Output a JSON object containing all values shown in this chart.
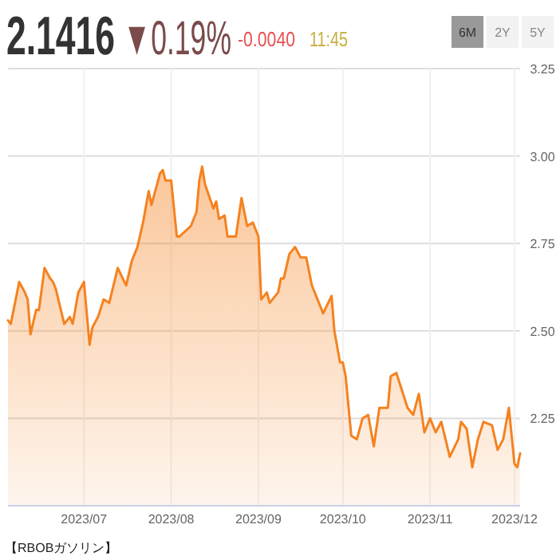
{
  "chart_data": {
    "type": "area",
    "annotations": [
      "2.1416",
      "▼0.19%",
      "-0.0040",
      "11:45",
      "6M",
      "2Y",
      "5Y",
      "【RBOBガソリン】"
    ],
    "x": [
      "2023-06-04",
      "2023-06-05",
      "2023-06-08",
      "2023-06-10",
      "2023-06-11",
      "2023-06-12",
      "2023-06-14",
      "2023-06-15",
      "2023-06-17",
      "2023-06-19",
      "2023-06-20",
      "2023-06-21",
      "2023-06-24",
      "2023-06-26",
      "2023-06-27",
      "2023-06-29",
      "2023-07-01",
      "2023-07-03",
      "2023-07-04",
      "2023-07-06",
      "2023-07-08",
      "2023-07-10",
      "2023-07-13",
      "2023-07-16",
      "2023-07-18",
      "2023-07-20",
      "2023-07-22",
      "2023-07-24",
      "2023-07-25",
      "2023-07-28",
      "2023-07-29",
      "2023-07-30",
      "2023-08-01",
      "2023-08-03",
      "2023-08-04",
      "2023-08-08",
      "2023-08-10",
      "2023-08-11",
      "2023-08-12",
      "2023-08-13",
      "2023-08-16",
      "2023-08-17",
      "2023-08-18",
      "2023-08-20",
      "2023-08-21",
      "2023-08-24",
      "2023-08-26",
      "2023-08-28",
      "2023-08-30",
      "2023-09-01",
      "2023-09-02",
      "2023-09-04",
      "2023-09-05",
      "2023-09-06",
      "2023-09-08",
      "2023-09-09",
      "2023-09-10",
      "2023-09-12",
      "2023-09-14",
      "2023-09-16",
      "2023-09-18",
      "2023-09-20",
      "2023-09-23",
      "2023-09-24",
      "2023-09-27",
      "2023-09-28",
      "2023-09-30",
      "2023-10-01",
      "2023-10-02",
      "2023-10-04",
      "2023-10-06",
      "2023-10-08",
      "2023-10-10",
      "2023-10-12",
      "2023-10-14",
      "2023-10-17",
      "2023-10-18",
      "2023-10-20",
      "2023-10-22",
      "2023-10-24",
      "2023-10-26",
      "2023-10-28",
      "2023-10-30",
      "2023-11-01",
      "2023-11-03",
      "2023-11-05",
      "2023-11-08",
      "2023-11-11",
      "2023-11-12",
      "2023-11-14",
      "2023-11-16",
      "2023-11-18",
      "2023-11-20",
      "2023-11-23",
      "2023-11-25",
      "2023-11-27",
      "2023-11-29",
      "2023-12-01",
      "2023-12-02",
      "2023-12-03"
    ],
    "series": [
      {
        "color": "#f5821f",
        "values": [
          2.53,
          2.52,
          2.64,
          2.61,
          2.59,
          2.49,
          2.56,
          2.56,
          2.68,
          2.65,
          2.64,
          2.62,
          2.52,
          2.54,
          2.52,
          2.61,
          2.64,
          2.46,
          2.51,
          2.54,
          2.59,
          2.58,
          2.68,
          2.63,
          2.7,
          2.74,
          2.81,
          2.9,
          2.86,
          2.95,
          2.96,
          2.93,
          2.93,
          2.77,
          2.77,
          2.8,
          2.84,
          2.93,
          2.97,
          2.92,
          2.85,
          2.87,
          2.82,
          2.83,
          2.77,
          2.77,
          2.88,
          2.8,
          2.81,
          2.77,
          2.59,
          2.61,
          2.58,
          2.59,
          2.61,
          2.65,
          2.65,
          2.72,
          2.74,
          2.71,
          2.71,
          2.63,
          2.57,
          2.55,
          2.6,
          2.5,
          2.41,
          2.41,
          2.37,
          2.2,
          2.19,
          2.25,
          2.26,
          2.17,
          2.28,
          2.28,
          2.37,
          2.38,
          2.33,
          2.28,
          2.26,
          2.32,
          2.21,
          2.25,
          2.21,
          2.24,
          2.14,
          2.19,
          2.24,
          2.22,
          2.11,
          2.19,
          2.24,
          2.23,
          2.16,
          2.19,
          2.28,
          2.12,
          2.11,
          2.15
        ]
      }
    ],
    "xlim": [
      "2023-06-04",
      "2023-12-03"
    ],
    "xticks": [
      {
        "value": "2023-07-01",
        "label": "2023/07"
      },
      {
        "value": "2023-08-01",
        "label": "2023/08"
      },
      {
        "value": "2023-09-01",
        "label": "2023/09"
      },
      {
        "value": "2023-10-01",
        "label": "2023/10"
      },
      {
        "value": "2023-11-01",
        "label": "2023/11"
      },
      {
        "value": "2023-12-01",
        "label": "2023/12"
      }
    ],
    "ylim": [
      2.0,
      3.25
    ],
    "yticks": [
      {
        "value": 2.25,
        "label": "2.25"
      },
      {
        "value": 2.5,
        "label": "2.50"
      },
      {
        "value": 2.75,
        "label": "2.75"
      },
      {
        "value": 3.0,
        "label": "3.00"
      },
      {
        "value": 3.25,
        "label": "3.25"
      }
    ],
    "grid": true
  }
}
